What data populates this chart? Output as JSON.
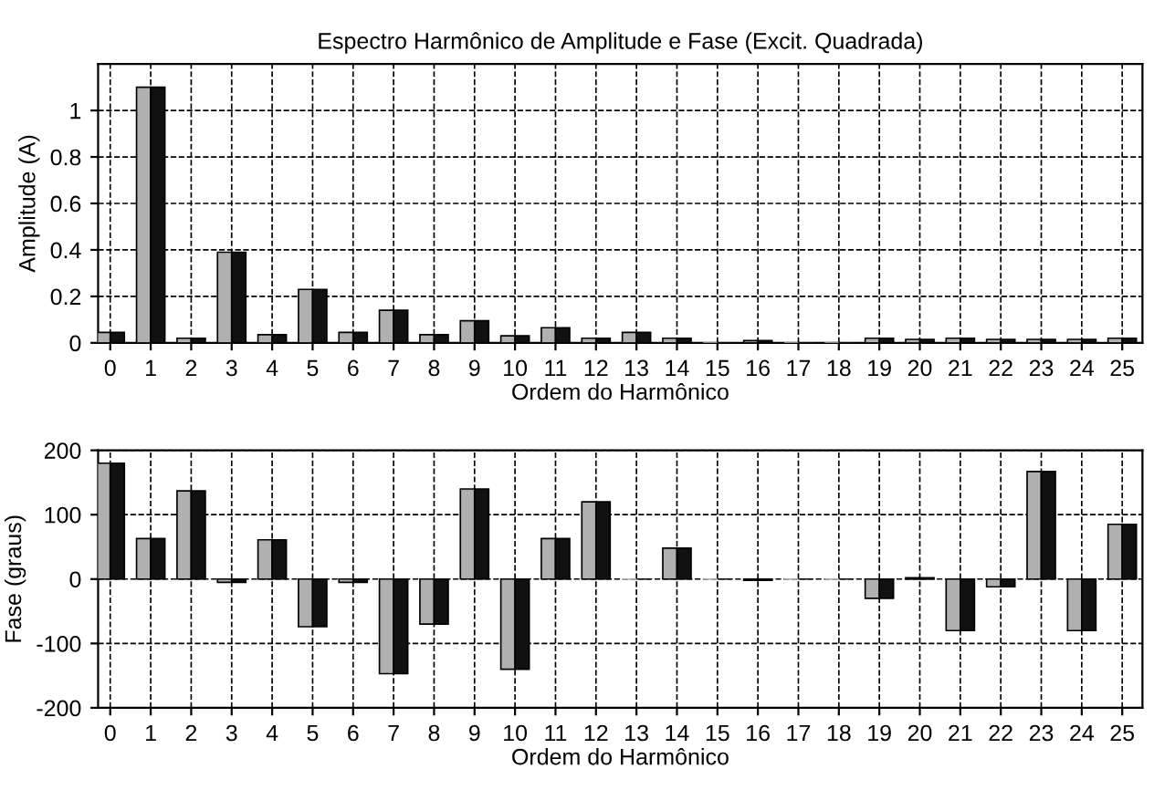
{
  "chart_data": [
    {
      "type": "bar",
      "title": "Espectro Harmônico de Amplitude e Fase (Excit. Quadrada)",
      "xlabel": "Ordem do Harmônico",
      "ylabel": "Amplitude (A)",
      "categories": [
        "0",
        "1",
        "2",
        "3",
        "4",
        "5",
        "6",
        "7",
        "8",
        "9",
        "10",
        "11",
        "12",
        "13",
        "14",
        "15",
        "16",
        "17",
        "18",
        "19",
        "20",
        "21",
        "22",
        "23",
        "24",
        "25"
      ],
      "series": [
        {
          "color": "#b0b0b0",
          "values": [
            0.045,
            1.1,
            0.02,
            0.39,
            0.035,
            0.23,
            0.045,
            0.14,
            0.035,
            0.095,
            0.03,
            0.065,
            0.02,
            0.045,
            0.02,
            0,
            0.01,
            0,
            0,
            0.02,
            0.015,
            0.02,
            0.015,
            0.015,
            0.015,
            0.02
          ]
        },
        {
          "color": "#111111",
          "values": [
            0.045,
            1.1,
            0.02,
            0.39,
            0.035,
            0.23,
            0.045,
            0.14,
            0.035,
            0.095,
            0.03,
            0.065,
            0.02,
            0.045,
            0.02,
            0,
            0.01,
            0,
            0,
            0.02,
            0.015,
            0.02,
            0.015,
            0.015,
            0.015,
            0.02
          ]
        }
      ],
      "ylim": [
        0,
        1.2
      ],
      "yticks": [
        0,
        0.2,
        0.4,
        0.6,
        0.8,
        1
      ],
      "grid": true,
      "line_style": "dashed"
    },
    {
      "type": "bar",
      "xlabel": "Ordem do Harmônico",
      "ylabel": "Fase (graus)",
      "categories": [
        "0",
        "1",
        "2",
        "3",
        "4",
        "5",
        "6",
        "7",
        "8",
        "9",
        "10",
        "11",
        "12",
        "13",
        "14",
        "15",
        "16",
        "17",
        "18",
        "19",
        "20",
        "21",
        "22",
        "23",
        "24",
        "25"
      ],
      "series": [
        {
          "color": "#b0b0b0",
          "values": [
            180,
            63,
            137,
            -5,
            61,
            -74,
            -5,
            -147,
            -70,
            140,
            -140,
            63,
            120,
            0,
            48,
            0,
            -2,
            0,
            0,
            -30,
            2,
            -80,
            -12,
            167,
            -80,
            85
          ]
        },
        {
          "color": "#111111",
          "values": [
            180,
            63,
            137,
            -5,
            61,
            -74,
            -5,
            -147,
            -70,
            140,
            -140,
            63,
            120,
            0,
            48,
            0,
            -2,
            0,
            0,
            -30,
            2,
            -80,
            -12,
            167,
            -80,
            85
          ]
        }
      ],
      "ylim": [
        -200,
        200
      ],
      "yticks": [
        -200,
        -100,
        0,
        100,
        200
      ],
      "grid": true,
      "line_style": "dashed"
    }
  ]
}
